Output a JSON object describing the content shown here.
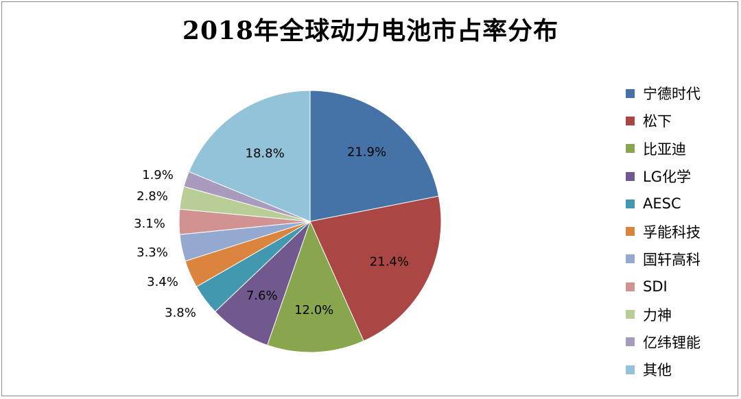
{
  "chart_data": {
    "type": "pie",
    "title": "2018年全球动力电池市占率分布",
    "unit": "%",
    "slices": [
      {
        "label": "宁德时代",
        "value": 21.9,
        "value_label": "21.9%",
        "color": "#4572a7"
      },
      {
        "label": "松下",
        "value": 21.4,
        "value_label": "21.4%",
        "color": "#aa4643"
      },
      {
        "label": "比亚迪",
        "value": 12.0,
        "value_label": "12.0%",
        "color": "#89a54e"
      },
      {
        "label": "LG化学",
        "value": 7.6,
        "value_label": "7.6%",
        "color": "#71588f"
      },
      {
        "label": "AESC",
        "value": 3.8,
        "value_label": "3.8%",
        "color": "#4198af"
      },
      {
        "label": "孚能科技",
        "value": 3.4,
        "value_label": "3.4%",
        "color": "#db843d"
      },
      {
        "label": "国轩高科",
        "value": 3.3,
        "value_label": "3.3%",
        "color": "#93a9cf"
      },
      {
        "label": "SDI",
        "value": 3.1,
        "value_label": "3.1%",
        "color": "#d19392"
      },
      {
        "label": "力神",
        "value": 2.8,
        "value_label": "2.8%",
        "color": "#b9cd96"
      },
      {
        "label": "亿纬锂能",
        "value": 1.9,
        "value_label": "1.9%",
        "color": "#a99bbd"
      },
      {
        "label": "其他",
        "value": 18.8,
        "value_label": "18.8%",
        "color": "#92c3d9"
      }
    ],
    "start_angle": "12 o'clock",
    "direction": "clockwise",
    "legend_position": "right",
    "data_labels": "inside for large slices, outside-left for small slices"
  }
}
